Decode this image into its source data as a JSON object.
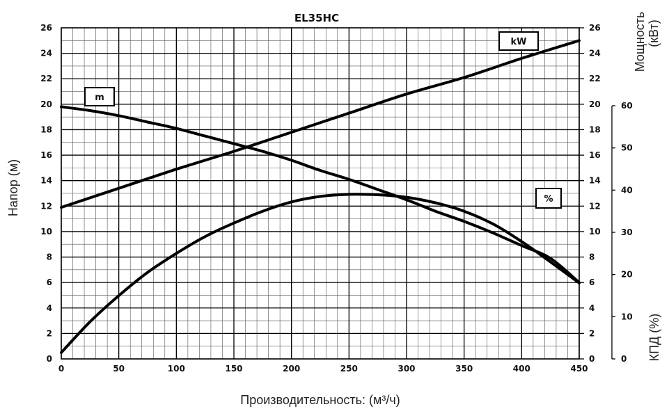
{
  "chart_data": {
    "type": "line",
    "title": "EL35HC",
    "xlabel": "Производительность: (м³/ч)",
    "ylabel_left": "Напор (м)",
    "ylabel_right_power": [
      "Мощность",
      "(кВт)"
    ],
    "ylabel_right_efficiency": "КПД (%)",
    "x_ticks": [
      0,
      50,
      100,
      150,
      200,
      250,
      300,
      350,
      400,
      450
    ],
    "y_ticks_left": [
      0,
      2,
      4,
      6,
      8,
      10,
      12,
      14,
      16,
      18,
      20,
      22,
      24,
      26
    ],
    "y_ticks_right_power": [
      0,
      2,
      4,
      6,
      8,
      10,
      12,
      14,
      16,
      18,
      20,
      22,
      24,
      26
    ],
    "y_ticks_right_efficiency": [
      "0",
      "1⁠0",
      "20",
      "30",
      "40",
      "50",
      "60"
    ],
    "xlim": [
      0,
      450
    ],
    "ylim_left": [
      0,
      26
    ],
    "ylim_right_power": [
      0,
      26
    ],
    "ylim_right_efficiency": [
      0,
      60
    ],
    "grid": true,
    "series": [
      {
        "name": "m",
        "axis": "head",
        "x": [
          0,
          25,
          50,
          75,
          100,
          125,
          150,
          175,
          200,
          225,
          250,
          275,
          300,
          325,
          350,
          375,
          400,
          425,
          450
        ],
        "values": [
          19.8,
          19.5,
          19.1,
          18.6,
          18.1,
          17.5,
          16.9,
          16.3,
          15.6,
          14.8,
          14.1,
          13.3,
          12.5,
          11.6,
          10.8,
          9.9,
          8.9,
          7.9,
          6.0
        ]
      },
      {
        "name": "kW",
        "axis": "power",
        "x": [
          0,
          50,
          100,
          150,
          200,
          250,
          300,
          350,
          400,
          450
        ],
        "values": [
          11.9,
          13.4,
          14.9,
          16.3,
          17.8,
          19.3,
          20.8,
          22.1,
          23.6,
          25.0
        ]
      },
      {
        "name": "%",
        "axis": "efficiency",
        "x": [
          0,
          25,
          50,
          75,
          100,
          125,
          150,
          175,
          200,
          225,
          250,
          275,
          300,
          325,
          350,
          375,
          400,
          425,
          450
        ],
        "values": [
          1.5,
          8.8,
          15.0,
          20.5,
          25.0,
          29.0,
          32.2,
          35.0,
          37.2,
          38.5,
          39.0,
          38.9,
          38.3,
          37.0,
          35.0,
          32.0,
          27.8,
          23.0,
          18.0
        ]
      }
    ]
  }
}
